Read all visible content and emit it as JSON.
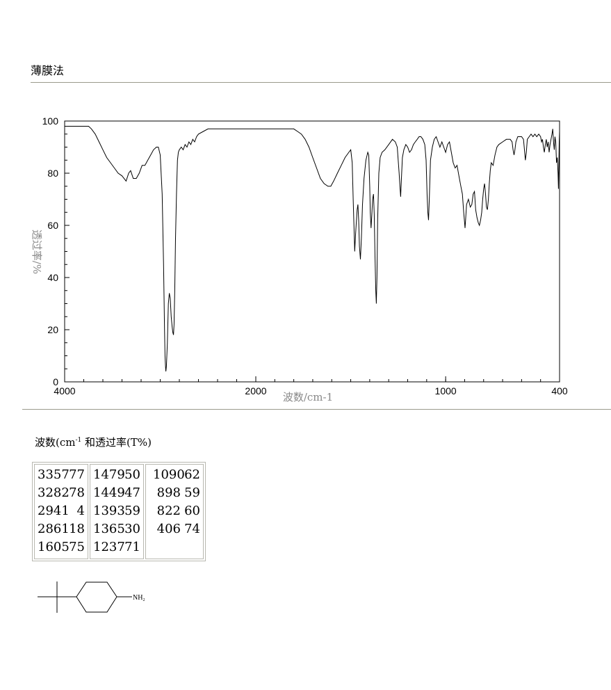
{
  "header": {
    "method": "薄膜法"
  },
  "chart_data": {
    "type": "line",
    "title": "",
    "xlabel": "波数/cm-1",
    "ylabel": "透过率/%",
    "xlim": [
      4000,
      400
    ],
    "ylim": [
      0,
      100
    ],
    "x_ticks": [
      "4000",
      "2000",
      "1000",
      "400"
    ],
    "y_ticks": [
      "0",
      "20",
      "40",
      "60",
      "80",
      "100"
    ],
    "grid": false,
    "series": [
      {
        "points": [
          [
            4000,
            98
          ],
          [
            3900,
            98
          ],
          [
            3800,
            98
          ],
          [
            3750,
            98
          ],
          [
            3720,
            97
          ],
          [
            3680,
            95
          ],
          [
            3640,
            92
          ],
          [
            3600,
            89
          ],
          [
            3560,
            86
          ],
          [
            3520,
            84
          ],
          [
            3480,
            82
          ],
          [
            3440,
            80
          ],
          [
            3400,
            79
          ],
          [
            3357,
            77
          ],
          [
            3330,
            80
          ],
          [
            3310,
            81
          ],
          [
            3282,
            78
          ],
          [
            3250,
            78
          ],
          [
            3220,
            80
          ],
          [
            3190,
            83
          ],
          [
            3160,
            83
          ],
          [
            3130,
            85
          ],
          [
            3100,
            87
          ],
          [
            3070,
            89
          ],
          [
            3040,
            90
          ],
          [
            3020,
            90
          ],
          [
            3000,
            87
          ],
          [
            2980,
            72
          ],
          [
            2965,
            45
          ],
          [
            2955,
            20
          ],
          [
            2950,
            10
          ],
          [
            2945,
            6
          ],
          [
            2941,
            4
          ],
          [
            2935,
            6
          ],
          [
            2925,
            15
          ],
          [
            2915,
            30
          ],
          [
            2905,
            34
          ],
          [
            2895,
            32
          ],
          [
            2885,
            25
          ],
          [
            2875,
            21
          ],
          [
            2868,
            19
          ],
          [
            2861,
            18
          ],
          [
            2855,
            22
          ],
          [
            2848,
            35
          ],
          [
            2840,
            55
          ],
          [
            2830,
            72
          ],
          [
            2820,
            85
          ],
          [
            2810,
            88
          ],
          [
            2800,
            89
          ],
          [
            2780,
            90
          ],
          [
            2760,
            89
          ],
          [
            2740,
            91
          ],
          [
            2720,
            90
          ],
          [
            2700,
            92
          ],
          [
            2680,
            91
          ],
          [
            2660,
            93
          ],
          [
            2640,
            92
          ],
          [
            2620,
            94
          ],
          [
            2600,
            95
          ],
          [
            2550,
            96
          ],
          [
            2500,
            97
          ],
          [
            2450,
            97
          ],
          [
            2400,
            97
          ],
          [
            2350,
            97
          ],
          [
            2300,
            97
          ],
          [
            2250,
            97
          ],
          [
            2200,
            97
          ],
          [
            2150,
            97
          ],
          [
            2100,
            97
          ],
          [
            2050,
            97
          ],
          [
            2000,
            97
          ],
          [
            1950,
            97
          ],
          [
            1900,
            97
          ],
          [
            1850,
            97
          ],
          [
            1800,
            97
          ],
          [
            1780,
            96
          ],
          [
            1760,
            95
          ],
          [
            1740,
            93
          ],
          [
            1720,
            90
          ],
          [
            1700,
            86
          ],
          [
            1680,
            82
          ],
          [
            1660,
            78
          ],
          [
            1640,
            76
          ],
          [
            1620,
            75
          ],
          [
            1605,
            75
          ],
          [
            1590,
            77
          ],
          [
            1570,
            80
          ],
          [
            1550,
            83
          ],
          [
            1530,
            86
          ],
          [
            1510,
            88
          ],
          [
            1500,
            89
          ],
          [
            1492,
            84
          ],
          [
            1487,
            70
          ],
          [
            1483,
            60
          ],
          [
            1479,
            50
          ],
          [
            1475,
            56
          ],
          [
            1470,
            62
          ],
          [
            1466,
            66
          ],
          [
            1462,
            68
          ],
          [
            1458,
            62
          ],
          [
            1454,
            52
          ],
          [
            1449,
            47
          ],
          [
            1444,
            55
          ],
          [
            1438,
            68
          ],
          [
            1430,
            78
          ],
          [
            1420,
            85
          ],
          [
            1410,
            88
          ],
          [
            1405,
            87
          ],
          [
            1400,
            75
          ],
          [
            1397,
            65
          ],
          [
            1393,
            59
          ],
          [
            1389,
            64
          ],
          [
            1385,
            70
          ],
          [
            1380,
            72
          ],
          [
            1376,
            64
          ],
          [
            1372,
            48
          ],
          [
            1368,
            35
          ],
          [
            1365,
            30
          ],
          [
            1362,
            40
          ],
          [
            1358,
            62
          ],
          [
            1352,
            80
          ],
          [
            1345,
            86
          ],
          [
            1335,
            88
          ],
          [
            1320,
            89
          ],
          [
            1300,
            91
          ],
          [
            1280,
            93
          ],
          [
            1265,
            92
          ],
          [
            1255,
            90
          ],
          [
            1245,
            80
          ],
          [
            1240,
            74
          ],
          [
            1237,
            71
          ],
          [
            1233,
            78
          ],
          [
            1228,
            86
          ],
          [
            1220,
            89
          ],
          [
            1210,
            91
          ],
          [
            1200,
            90
          ],
          [
            1190,
            88
          ],
          [
            1180,
            89
          ],
          [
            1170,
            91
          ],
          [
            1160,
            92
          ],
          [
            1150,
            93
          ],
          [
            1140,
            94
          ],
          [
            1130,
            94
          ],
          [
            1120,
            93
          ],
          [
            1110,
            91
          ],
          [
            1103,
            85
          ],
          [
            1098,
            72
          ],
          [
            1094,
            65
          ],
          [
            1090,
            62
          ],
          [
            1086,
            70
          ],
          [
            1080,
            85
          ],
          [
            1070,
            90
          ],
          [
            1060,
            93
          ],
          [
            1050,
            94
          ],
          [
            1040,
            92
          ],
          [
            1030,
            90
          ],
          [
            1020,
            92
          ],
          [
            1010,
            90
          ],
          [
            1000,
            88
          ],
          [
            990,
            91
          ],
          [
            980,
            92
          ],
          [
            970,
            88
          ],
          [
            960,
            84
          ],
          [
            950,
            82
          ],
          [
            940,
            83
          ],
          [
            930,
            79
          ],
          [
            920,
            75
          ],
          [
            912,
            72
          ],
          [
            905,
            65
          ],
          [
            900,
            61
          ],
          [
            898,
            59
          ],
          [
            895,
            62
          ],
          [
            890,
            68
          ],
          [
            880,
            70
          ],
          [
            870,
            67
          ],
          [
            862,
            68
          ],
          [
            855,
            72
          ],
          [
            848,
            73
          ],
          [
            842,
            66
          ],
          [
            835,
            63
          ],
          [
            828,
            61
          ],
          [
            822,
            60
          ],
          [
            816,
            62
          ],
          [
            810,
            65
          ],
          [
            805,
            70
          ],
          [
            800,
            74
          ],
          [
            795,
            76
          ],
          [
            790,
            72
          ],
          [
            785,
            67
          ],
          [
            780,
            66
          ],
          [
            775,
            70
          ],
          [
            770,
            76
          ],
          [
            765,
            81
          ],
          [
            760,
            84
          ],
          [
            750,
            83
          ],
          [
            740,
            87
          ],
          [
            730,
            90
          ],
          [
            720,
            91
          ],
          [
            700,
            92
          ],
          [
            680,
            93
          ],
          [
            660,
            93
          ],
          [
            650,
            92
          ],
          [
            645,
            89
          ],
          [
            640,
            87
          ],
          [
            635,
            89
          ],
          [
            630,
            92
          ],
          [
            620,
            94
          ],
          [
            600,
            94
          ],
          [
            590,
            93
          ],
          [
            585,
            89
          ],
          [
            580,
            85
          ],
          [
            575,
            88
          ],
          [
            570,
            93
          ],
          [
            560,
            94
          ],
          [
            550,
            95
          ],
          [
            540,
            94
          ],
          [
            530,
            95
          ],
          [
            520,
            94
          ],
          [
            510,
            95
          ],
          [
            500,
            94
          ],
          [
            495,
            92
          ],
          [
            490,
            93
          ],
          [
            485,
            90
          ],
          [
            480,
            88
          ],
          [
            475,
            91
          ],
          [
            470,
            93
          ],
          [
            465,
            90
          ],
          [
            460,
            92
          ],
          [
            455,
            88
          ],
          [
            450,
            91
          ],
          [
            445,
            93
          ],
          [
            440,
            95
          ],
          [
            436,
            97
          ],
          [
            432,
            92
          ],
          [
            428,
            89
          ],
          [
            424,
            94
          ],
          [
            420,
            92
          ],
          [
            416,
            84
          ],
          [
            412,
            86
          ],
          [
            408,
            80
          ],
          [
            406,
            74
          ],
          [
            404,
            82
          ],
          [
            402,
            92
          ],
          [
            400,
            96
          ]
        ]
      }
    ]
  },
  "peaks": {
    "caption_prefix": "波数(cm",
    "caption_sup": "-1",
    "caption_suffix": " 和透过率(T%)",
    "columns": [
      [
        {
          "wn": "3357",
          "t": "77"
        },
        {
          "wn": "3282",
          "t": "78"
        },
        {
          "wn": "2941",
          "t": "4"
        },
        {
          "wn": "2861",
          "t": "18"
        },
        {
          "wn": "1605",
          "t": "75"
        }
      ],
      [
        {
          "wn": "1479",
          "t": "50"
        },
        {
          "wn": "1449",
          "t": "47"
        },
        {
          "wn": "1393",
          "t": "59"
        },
        {
          "wn": "1365",
          "t": "30"
        },
        {
          "wn": "1237",
          "t": "71"
        }
      ],
      [
        {
          "wn": "1090",
          "t": "62"
        },
        {
          "wn": "898",
          "t": "59"
        },
        {
          "wn": "822",
          "t": "60"
        },
        {
          "wn": "406",
          "t": "74"
        }
      ]
    ]
  },
  "structure": {
    "amine_label": "NH",
    "amine_subscript": "2"
  }
}
